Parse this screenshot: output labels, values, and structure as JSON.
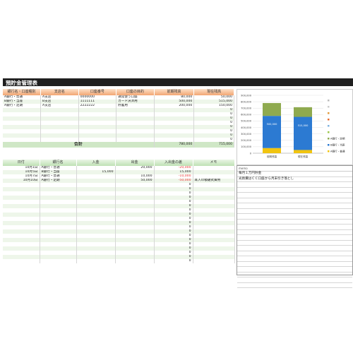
{
  "title": "預貯金管理表",
  "accounts": {
    "headers": [
      "銀行名・口座種別",
      "支店名",
      "口座番号",
      "口座の目的",
      "前期残高",
      "現在残高"
    ],
    "rows": [
      [
        "A銀行・普通",
        "A支店",
        "0000000",
        "通常使う口座",
        "80,000",
        "50,000"
      ],
      [
        "B銀行・当座",
        "B支店",
        "1111111",
        "カード決済用",
        "500,000",
        "515,000"
      ],
      [
        "A銀行・定期",
        "A支店",
        "2222222",
        "貯蓄用",
        "200,000",
        "150,000"
      ],
      [
        "",
        "",
        "",
        "",
        "",
        "0"
      ],
      [
        "",
        "",
        "",
        "",
        "",
        "0"
      ],
      [
        "",
        "",
        "",
        "",
        "",
        "0"
      ],
      [
        "",
        "",
        "",
        "",
        "",
        "0"
      ],
      [
        "",
        "",
        "",
        "",
        "",
        "0"
      ],
      [
        "",
        "",
        "",
        "",
        "",
        "0"
      ],
      [
        "",
        "",
        "",
        "",
        "",
        "0"
      ],
      [
        "",
        "",
        "",
        "",
        "",
        "0"
      ]
    ],
    "total_label": "合計",
    "total_prev": "780,000",
    "total_curr": "715,000"
  },
  "transactions": {
    "headers": [
      "日付",
      "銀行名",
      "入金",
      "出金",
      "入出金の差",
      "メモ"
    ],
    "rows": [
      [
        "10月1日",
        "A銀行・普通",
        "",
        "20,000",
        "-20,000",
        ""
      ],
      [
        "10月5日",
        "B銀行・当座",
        "15,000",
        "",
        "15,000",
        ""
      ],
      [
        "10月7日",
        "A銀行・普通",
        "",
        "10,000",
        "-10,000",
        ""
      ],
      [
        "10月10日",
        "A銀行・定期",
        "",
        "50,000",
        "-50,000",
        "耳入の積破式費用"
      ],
      [
        "",
        "",
        "",
        "",
        "0",
        ""
      ],
      [
        "",
        "",
        "",
        "",
        "0",
        ""
      ],
      [
        "",
        "",
        "",
        "",
        "0",
        ""
      ],
      [
        "",
        "",
        "",
        "",
        "0",
        ""
      ],
      [
        "",
        "",
        "",
        "",
        "0",
        ""
      ],
      [
        "",
        "",
        "",
        "",
        "0",
        ""
      ],
      [
        "",
        "",
        "",
        "",
        "0",
        ""
      ],
      [
        "",
        "",
        "",
        "",
        "0",
        ""
      ],
      [
        "",
        "",
        "",
        "",
        "0",
        ""
      ],
      [
        "",
        "",
        "",
        "",
        "0",
        ""
      ],
      [
        "",
        "",
        "",
        "",
        "0",
        ""
      ],
      [
        "",
        "",
        "",
        "",
        "0",
        ""
      ],
      [
        "",
        "",
        "",
        "",
        "0",
        ""
      ],
      [
        "",
        "",
        "",
        "",
        "0",
        ""
      ],
      [
        "",
        "",
        "",
        "",
        "0",
        ""
      ],
      [
        "",
        "",
        "",
        "",
        "0",
        ""
      ],
      [
        "",
        "",
        "",
        "",
        "0",
        ""
      ],
      [
        "",
        "",
        "",
        "",
        "0",
        ""
      ],
      [
        "",
        "",
        "",
        "",
        "0",
        ""
      ]
    ]
  },
  "memo": {
    "header": "memo",
    "lines": [
      "毎月１万円貯金",
      "光熱費はＣＣ口座から月末引き落とし",
      "",
      "",
      "",
      "",
      "",
      "",
      "",
      "",
      "",
      "",
      "",
      "",
      "",
      "",
      "",
      "",
      "",
      "",
      "",
      ""
    ]
  },
  "chart_data": {
    "type": "bar",
    "stacked": true,
    "categories": [
      "前期残高",
      "現在残高"
    ],
    "series": [
      {
        "name": "A銀行・定期",
        "values": [
          200000,
          150000
        ],
        "color": "#8faa4f"
      },
      {
        "name": "B銀行・当座",
        "values": [
          500000,
          515000
        ],
        "color": "#2c7ad2",
        "labels": [
          "500,000",
          "515,000"
        ]
      },
      {
        "name": "A銀行・普通",
        "values": [
          80000,
          50000
        ],
        "color": "#f1c40f"
      }
    ],
    "legend_other_colors": [
      "#bbb",
      "#ccc",
      "#e39b3c",
      "#e76a2c",
      "#7fb3e0",
      "#9bc74a"
    ],
    "ylim": [
      0,
      900000
    ],
    "yticks": [
      "0",
      "100,000",
      "200,000",
      "300,000",
      "400,000",
      "500,000",
      "600,000",
      "700,000",
      "800,000",
      "900,000"
    ],
    "legend_position": "right"
  }
}
